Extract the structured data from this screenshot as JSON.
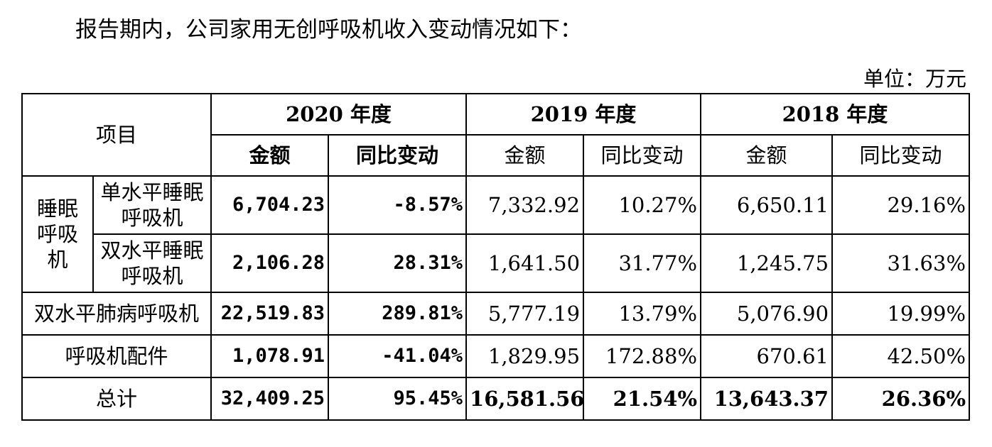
{
  "intro": "报告期内，公司家用无创呼吸机收入变动情况如下：",
  "unit": "单位：万元",
  "header": {
    "item": "项目",
    "years": [
      "2020 年度",
      "2019 年度",
      "2018 年度"
    ],
    "amount": "金额",
    "change": "同比变动"
  },
  "group": {
    "line1": "睡眠",
    "line2": "呼吸",
    "line3": "机"
  },
  "rows": [
    {
      "l1": "单水平睡眠",
      "l2": "呼吸机",
      "v": [
        "6,704.23",
        "-8.57%",
        "7,332.92",
        "10.27%",
        "6,650.11",
        "29.16%"
      ]
    },
    {
      "l1": "双水平睡眠",
      "l2": "呼吸机",
      "v": [
        "2,106.28",
        "28.31%",
        "1,641.50",
        "31.77%",
        "1,245.75",
        "31.63%"
      ]
    },
    {
      "label": "双水平肺病呼吸机",
      "v": [
        "22,519.83",
        "289.81%",
        "5,777.19",
        "13.79%",
        "5,076.90",
        "19.99%"
      ]
    },
    {
      "label": "呼吸机配件",
      "v": [
        "1,078.91",
        "-41.04%",
        "1,829.95",
        "172.88%",
        "670.61",
        "42.50%"
      ]
    },
    {
      "label": "总计",
      "v": [
        "32,409.25",
        "95.45%",
        "16,581.56",
        "21.54%",
        "13,643.37",
        "26.36%"
      ]
    }
  ]
}
